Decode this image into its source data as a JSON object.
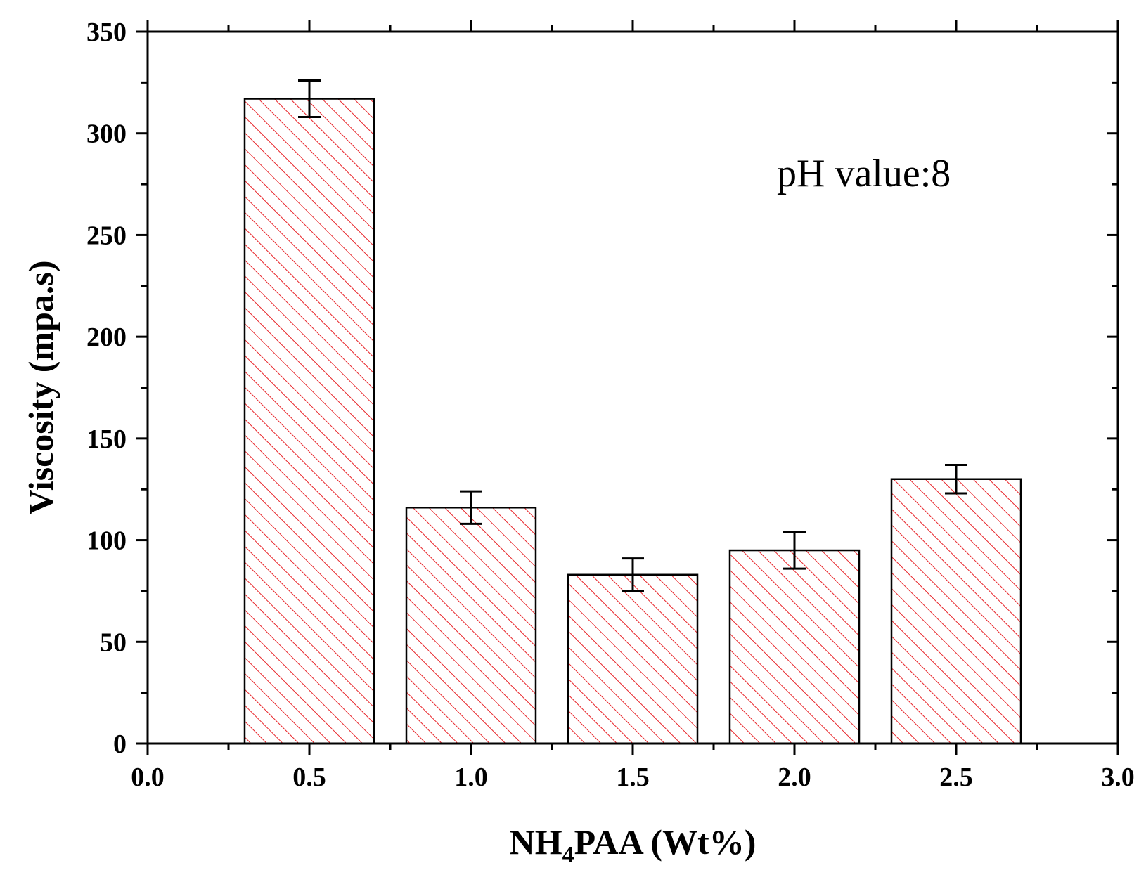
{
  "chart_data": {
    "type": "bar",
    "title": "",
    "x": [
      0.5,
      1.0,
      1.5,
      2.0,
      2.5
    ],
    "values": [
      317,
      116,
      83,
      95,
      130
    ],
    "errors": [
      9,
      8,
      8,
      9,
      7
    ],
    "bar_width": 0.4,
    "xlabel_main": "NH",
    "xlabel_sub": "4",
    "xlabel_rest": "PAA (Wt%)",
    "ylabel": "Viscosity (mpa.s)",
    "xlim": [
      0.0,
      3.0
    ],
    "ylim": [
      0,
      350
    ],
    "x_ticks": [
      "0.0",
      "0.5",
      "1.0",
      "1.5",
      "2.0",
      "2.5",
      "3.0"
    ],
    "y_ticks": [
      "0",
      "50",
      "100",
      "150",
      "200",
      "250",
      "300",
      "350"
    ],
    "annotation": "pH value:8",
    "bar_color": "#e8262b",
    "axis_color": "#000000",
    "fill_pattern": "diagonal-hatch"
  }
}
